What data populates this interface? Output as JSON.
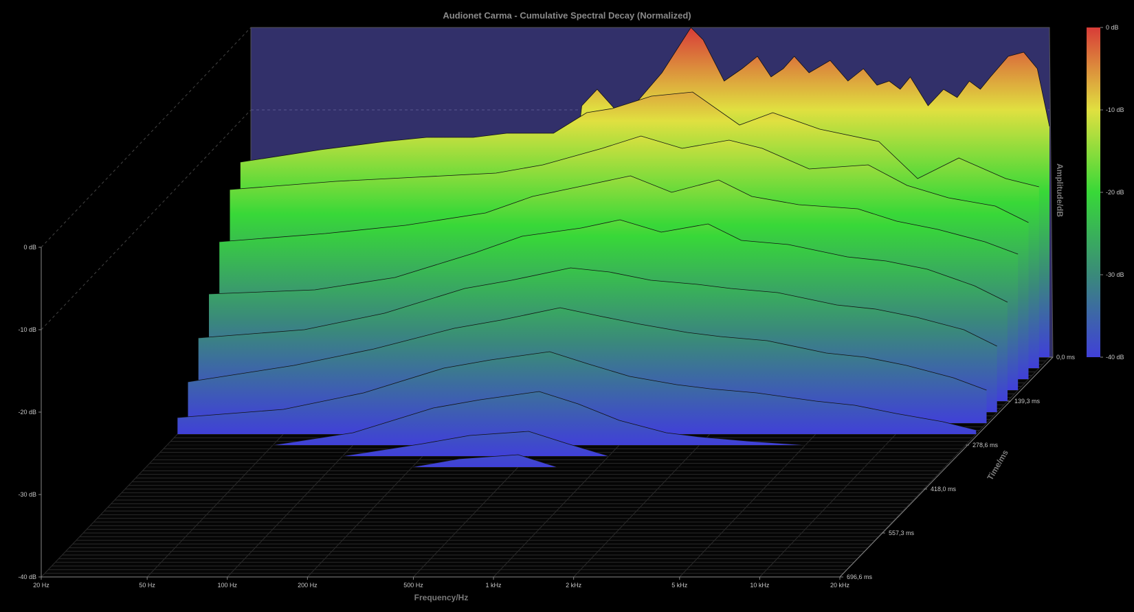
{
  "chart_data": {
    "type": "waterfall-3d",
    "title": "Audionet Carma - Cumulative Spectral Decay (Normalized)",
    "xlabel": "Frequency/Hz",
    "ylabel": "Amplitude/dB",
    "zlabel": "Time/ms",
    "x_scale": "log",
    "xlim": [
      20,
      20000
    ],
    "ylim": [
      -40,
      0
    ],
    "x_ticks": [
      "20 Hz",
      "50 Hz",
      "100 Hz",
      "200 Hz",
      "500 Hz",
      "1 kHz",
      "2 kHz",
      "5 kHz",
      "10 kHz",
      "20 kHz"
    ],
    "x_tick_values": [
      20,
      50,
      100,
      200,
      500,
      1000,
      2000,
      5000,
      10000,
      20000
    ],
    "y_ticks": [
      "0 dB",
      "-10 dB",
      "-20 dB",
      "-30 dB",
      "-40 dB"
    ],
    "time_ticks": [
      "0,0 ms",
      "139,3 ms",
      "278,6 ms",
      "418,0 ms",
      "557,3 ms",
      "696,6 ms"
    ],
    "time_tick_values": [
      0,
      139.3,
      278.6,
      418.0,
      557.3,
      696.6
    ],
    "colorbar_ticks": [
      "0 dB",
      "-10 dB",
      "-20 dB",
      "-30 dB",
      "-40 dB"
    ],
    "colorbar_colors": [
      "#d83c38",
      "#e0e040",
      "#38d838",
      "#3a8a7a",
      "#4040d8"
    ],
    "background_color": "#000000",
    "back_panel_color": "#32306a",
    "grid_color": "#555555",
    "slices": [
      {
        "t": 0,
        "x": [
          20,
          25,
          35,
          50,
          70,
          90,
          120,
          140,
          160,
          180,
          200,
          240,
          280,
          300,
          330,
          350,
          400,
          500,
          700,
          900,
          1000,
          1200,
          1400,
          1600,
          1800,
          2000,
          2200,
          2500,
          3000,
          3500,
          4000,
          4500,
          5000,
          5500,
          6000,
          7000,
          8000,
          9000,
          10000,
          11000,
          12000,
          14000,
          16000,
          18000,
          20000
        ],
        "y": [
          -17.5,
          -17.5,
          -17.5,
          -17.5,
          -17.5,
          -17.5,
          -17.5,
          -17.5,
          -17.5,
          -17.5,
          -17.5,
          -17.5,
          -17.5,
          -17.5,
          -16.5,
          -9.5,
          -7.5,
          -11.0,
          -5.5,
          0.0,
          -1.5,
          -6.5,
          -5.0,
          -3.5,
          -6.0,
          -5.0,
          -3.5,
          -5.5,
          -4.0,
          -6.5,
          -5.0,
          -7.0,
          -6.5,
          -7.5,
          -6.0,
          -9.5,
          -7.5,
          -8.5,
          -6.5,
          -7.5,
          -6.0,
          -3.5,
          -3.0,
          -5.0,
          -12.0
        ]
      },
      {
        "t": 34.8,
        "x": [
          20,
          40,
          70,
          100,
          150,
          200,
          300,
          400,
          500,
          700,
          1000,
          1500,
          2000,
          3000,
          5000,
          7000,
          10000,
          15000,
          20000
        ],
        "y": [
          -15.0,
          -13.5,
          -12.5,
          -12.0,
          -12.0,
          -11.5,
          -11.5,
          -9.0,
          -8.5,
          -7.0,
          -6.5,
          -10.5,
          -9.0,
          -11.0,
          -12.5,
          -17.0,
          -14.5,
          -17.0,
          -18.0
        ]
      },
      {
        "t": 69.7,
        "x": [
          20,
          50,
          100,
          200,
          300,
          500,
          700,
          1000,
          1500,
          2000,
          3000,
          5000,
          7000,
          10000,
          15000,
          20000
        ],
        "y": [
          -17.0,
          -16.0,
          -15.5,
          -15.0,
          -14.0,
          -12.0,
          -10.5,
          -12.0,
          -11.0,
          -12.0,
          -14.5,
          -14.0,
          -16.5,
          -18.0,
          -19.0,
          -21.0
        ]
      },
      {
        "t": 104.5,
        "x": [
          20,
          50,
          100,
          200,
          300,
          500,
          700,
          1000,
          1500,
          2000,
          3000,
          5000,
          7000,
          10000,
          15000,
          20000
        ],
        "y": [
          -22.0,
          -21.0,
          -20.0,
          -18.5,
          -16.5,
          -15.0,
          -14.0,
          -16.0,
          -14.5,
          -16.5,
          -17.5,
          -18.0,
          -19.5,
          -20.5,
          -22.0,
          -23.5
        ]
      },
      {
        "t": 139.3,
        "x": [
          20,
          50,
          100,
          200,
          300,
          500,
          700,
          1000,
          1500,
          2000,
          3000,
          5000,
          7000,
          10000,
          15000,
          20000
        ],
        "y": [
          -27.0,
          -26.5,
          -25.0,
          -22.0,
          -20.0,
          -19.0,
          -18.0,
          -19.5,
          -18.5,
          -20.5,
          -21.0,
          -22.5,
          -23.0,
          -24.0,
          -26.0,
          -28.0
        ]
      },
      {
        "t": 174.2,
        "x": [
          20,
          50,
          100,
          200,
          300,
          500,
          700,
          1000,
          1500,
          2000,
          3000,
          5000,
          7000,
          10000,
          15000,
          20000
        ],
        "y": [
          -31.0,
          -30.0,
          -28.0,
          -25.0,
          -24.0,
          -22.5,
          -23.0,
          -24.0,
          -24.5,
          -25.0,
          -25.5,
          -27.0,
          -27.5,
          -28.5,
          -30.0,
          -32.0
        ]
      },
      {
        "t": 209.0,
        "x": [
          20,
          50,
          100,
          200,
          300,
          500,
          700,
          1000,
          1500,
          2000,
          3000,
          5000,
          7000,
          10000,
          15000,
          20000
        ],
        "y": [
          -35.0,
          -33.0,
          -31.0,
          -28.5,
          -27.5,
          -26.0,
          -27.0,
          -28.0,
          -29.0,
          -29.5,
          -30.0,
          -31.5,
          -32.0,
          -33.0,
          -34.5,
          -36.0
        ]
      },
      {
        "t": 243.8,
        "x": [
          20,
          50,
          100,
          200,
          300,
          500,
          700,
          1000,
          1500,
          2000,
          3000,
          5000,
          7000,
          10000,
          15000,
          20000
        ],
        "y": [
          -38.0,
          -37.0,
          -35.0,
          -32.0,
          -31.0,
          -30.0,
          -31.5,
          -33.0,
          -34.0,
          -34.5,
          -35.0,
          -36.0,
          -36.5,
          -37.5,
          -38.5,
          -39.5
        ]
      },
      {
        "t": 278.6,
        "x": [
          20,
          50,
          100,
          200,
          300,
          500,
          700,
          1000,
          1500,
          2000,
          3000,
          5000,
          7000,
          10000,
          15000,
          20000
        ],
        "y": [
          -40.0,
          -40.0,
          -38.5,
          -35.5,
          -34.5,
          -33.5,
          -35.0,
          -37.0,
          -38.5,
          -39.0,
          -39.5,
          -40.0,
          -40.0,
          -40.0,
          -40.0,
          -40.0
        ]
      },
      {
        "t": 313.5,
        "x": [
          20,
          50,
          100,
          200,
          300,
          500,
          700,
          1000,
          1500,
          2000,
          3000,
          5000,
          7000,
          10000,
          15000,
          20000
        ],
        "y": [
          -40.0,
          -40.0,
          -40.0,
          -38.5,
          -37.5,
          -37.0,
          -38.5,
          -40.0,
          -40.0,
          -40.0,
          -40.0,
          -40.0,
          -40.0,
          -40.0,
          -40.0,
          -40.0
        ]
      },
      {
        "t": 348.3,
        "x": [
          20,
          50,
          100,
          200,
          300,
          500,
          700,
          1000,
          1500,
          2000,
          3000,
          5000,
          7000,
          10000,
          15000,
          20000
        ],
        "y": [
          -40.0,
          -40.0,
          -40.0,
          -40.0,
          -39.0,
          -38.5,
          -40.0,
          -40.0,
          -40.0,
          -40.0,
          -40.0,
          -40.0,
          -40.0,
          -40.0,
          -40.0,
          -40.0
        ]
      }
    ]
  }
}
